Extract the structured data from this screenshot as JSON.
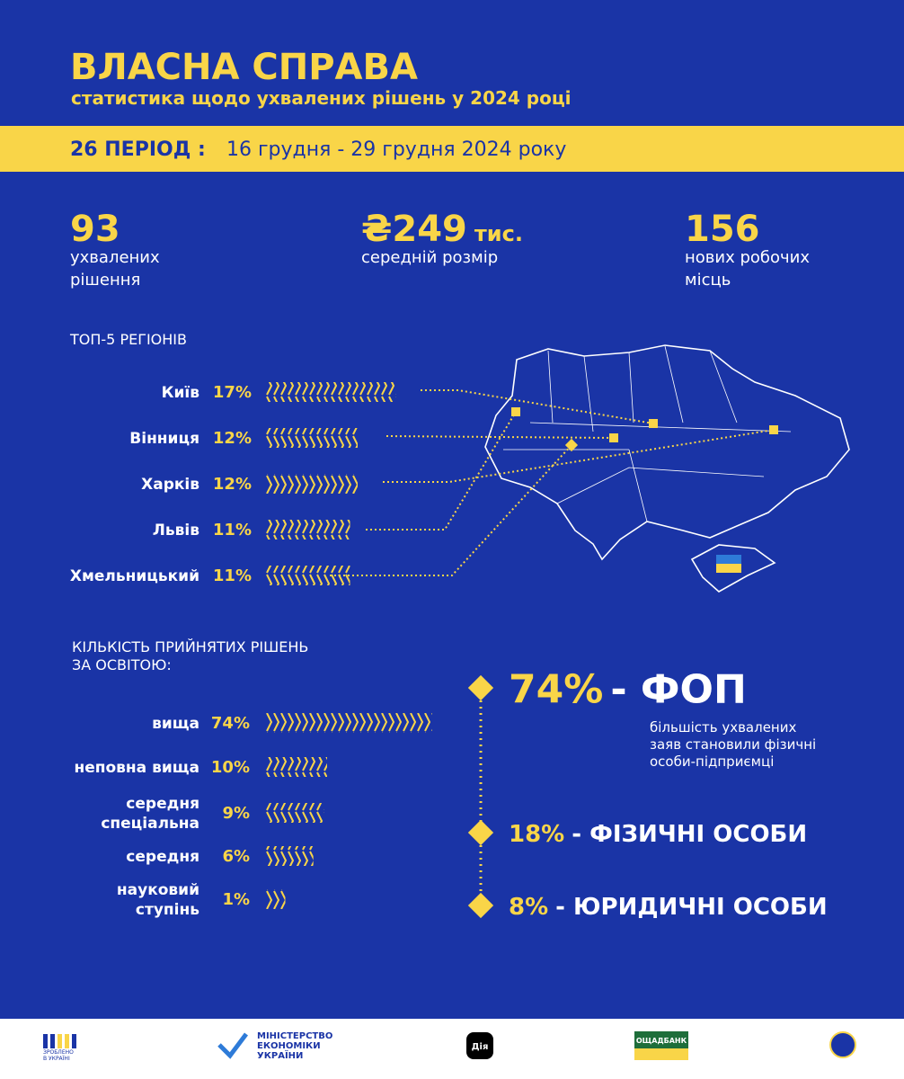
{
  "header": {
    "title": "ВЛАСНА СПРАВА",
    "subtitle": "статистика щодо ухвалених рішень у 2024 році"
  },
  "period": {
    "label": "26 ПЕРІОД :",
    "dates": "16 грудня - 29 грудня 2024 року"
  },
  "stats": [
    {
      "value": "93",
      "lines": [
        "ухвалених",
        "рішення"
      ]
    },
    {
      "value": "₴249",
      "unit": "тис.",
      "lines": [
        "середній розмір"
      ]
    },
    {
      "value": "156",
      "lines": [
        "нових робочих",
        "місць"
      ]
    }
  ],
  "regions": {
    "title": "ТОП-5 РЕГІОНІВ",
    "items": [
      {
        "name": "Київ",
        "value": 17,
        "label": "17%"
      },
      {
        "name": "Вінниця",
        "value": 12,
        "label": "12%"
      },
      {
        "name": "Харків",
        "value": 12,
        "label": "12%"
      },
      {
        "name": "Львів",
        "value": 11,
        "label": "11%"
      },
      {
        "name": "Хмельницький",
        "value": 11,
        "label": "11%"
      }
    ]
  },
  "education": {
    "title": [
      "КІЛЬКІСТЬ ПРИЙНЯТИХ РІШЕНЬ",
      "ЗА ОСВІТОЮ:"
    ],
    "items": [
      {
        "name": [
          "вища"
        ],
        "value": 74,
        "label": "74%"
      },
      {
        "name": [
          "неповна вища"
        ],
        "value": 10,
        "label": "10%"
      },
      {
        "name": [
          "середня",
          "спеціальна"
        ],
        "value": 9,
        "label": "9%"
      },
      {
        "name": [
          "середня"
        ],
        "value": 6,
        "label": "6%"
      },
      {
        "name": [
          "науковий",
          "ступінь"
        ],
        "value": 1,
        "label": "1%"
      }
    ]
  },
  "forms": [
    {
      "value": 74,
      "label": "74%",
      "name": "- ФОП",
      "note": [
        "більшість ухвалених",
        "заяв становили фізичні",
        "особи-підприємці"
      ]
    },
    {
      "value": 18,
      "label": "18%",
      "name": "- ФІЗИЧНІ ОСОБИ"
    },
    {
      "value": 8,
      "label": "8%",
      "name": "- ЮРИДИЧНІ ОСОБИ"
    }
  ],
  "footer": {
    "made": [
      "ЗРОБЛЕНО",
      "В УКРАЇНІ"
    ],
    "ministry": [
      "МІНІСТЕРСТВО",
      "ЕКОНОМІКИ",
      "УКРАЇНИ"
    ],
    "diia": "Дія",
    "bank": "ОЩАДБАНК"
  }
}
